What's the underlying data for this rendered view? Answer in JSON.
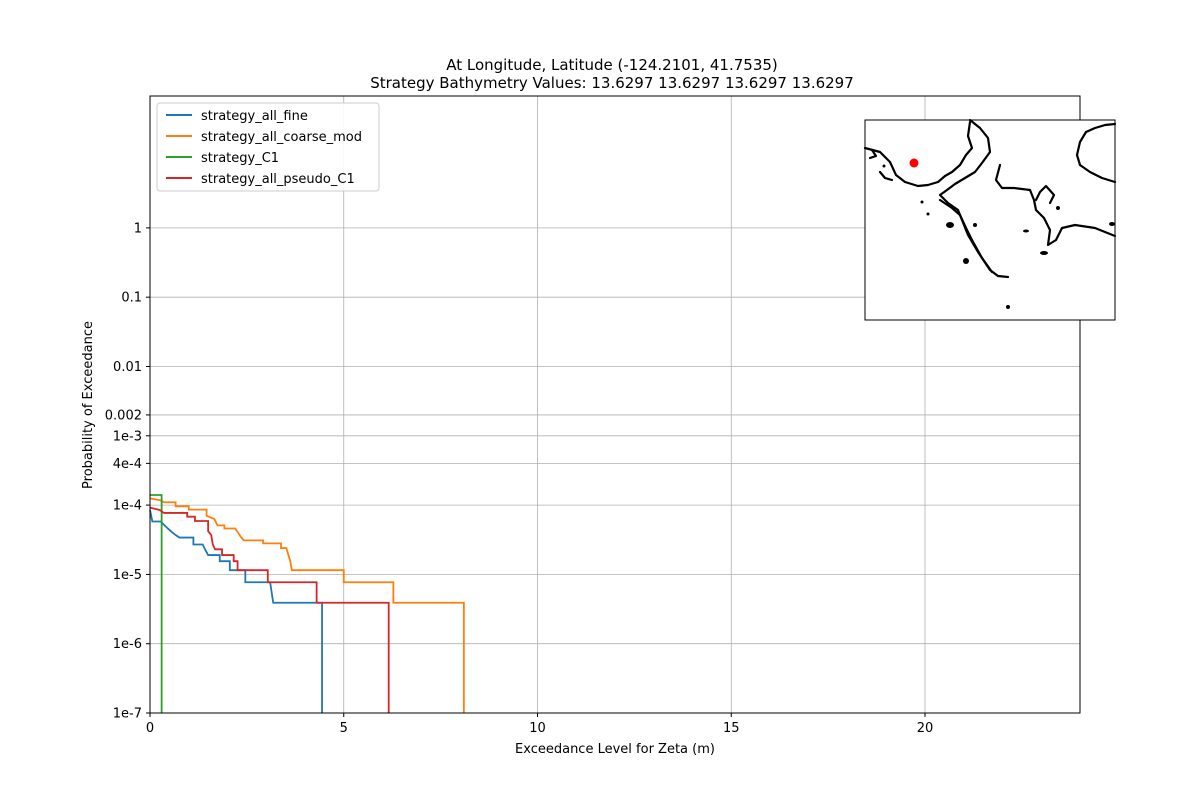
{
  "chart_data": {
    "type": "line",
    "step": true,
    "title": [
      "At Longitude, Latitude (-124.2101,  41.7535)",
      "Strategy Bathymetry Values:   13.6297   13.6297   13.6297   13.6297"
    ],
    "xlabel": "Exceedance Level for Zeta (m)",
    "ylabel": "Probability of Exceedance",
    "xlim": [
      0,
      24
    ],
    "ylim": [
      1e-07,
      80
    ],
    "yscale": "log",
    "grid": true,
    "legend": "top-left",
    "x_ticks": [
      {
        "v": 0,
        "label": "0"
      },
      {
        "v": 5,
        "label": "5"
      },
      {
        "v": 10,
        "label": "10"
      },
      {
        "v": 15,
        "label": "15"
      },
      {
        "v": 20,
        "label": "20"
      }
    ],
    "y_ticks": [
      {
        "v": 1e-07,
        "label": "1e-7"
      },
      {
        "v": 1e-06,
        "label": "1e-6"
      },
      {
        "v": 1e-05,
        "label": "1e-5"
      },
      {
        "v": 0.0001,
        "label": "1e-4"
      },
      {
        "v": 0.0004,
        "label": "4e-4"
      },
      {
        "v": 0.001,
        "label": "1e-3"
      },
      {
        "v": 0.002,
        "label": "0.002"
      },
      {
        "v": 0.01,
        "label": "0.01"
      },
      {
        "v": 0.1,
        "label": "0.1"
      },
      {
        "v": 1,
        "label": "1"
      }
    ],
    "series": [
      {
        "name": "strategy_all_fine",
        "color": "#1f77b4",
        "points": [
          [
            0,
            8.5e-05
          ],
          [
            0.06,
            5.8e-05
          ],
          [
            0.28,
            5.8e-05
          ],
          [
            0.36,
            5.2e-05
          ],
          [
            0.46,
            4.6e-05
          ],
          [
            0.56,
            4.1e-05
          ],
          [
            0.66,
            3.7e-05
          ],
          [
            0.76,
            3.4e-05
          ],
          [
            1.12,
            3.4e-05
          ],
          [
            1.12,
            2.7e-05
          ],
          [
            1.36,
            2.7e-05
          ],
          [
            1.42,
            2.3e-05
          ],
          [
            1.5,
            1.9e-05
          ],
          [
            1.8,
            1.9e-05
          ],
          [
            1.8,
            1.55e-05
          ],
          [
            2.06,
            1.55e-05
          ],
          [
            2.06,
            1.15e-05
          ],
          [
            2.46,
            1.15e-05
          ],
          [
            2.46,
            7.7e-06
          ],
          [
            3.1,
            7.7e-06
          ],
          [
            3.18,
            3.9e-06
          ],
          [
            4.44,
            3.9e-06
          ],
          [
            4.44,
            1e-07
          ]
        ]
      },
      {
        "name": "strategy_all_coarse_mod",
        "color": "#ff7f0e",
        "points": [
          [
            0,
            0.000125
          ],
          [
            0.25,
            0.000118
          ],
          [
            0.36,
            0.00011
          ],
          [
            0.66,
            0.00011
          ],
          [
            0.66,
            9.6e-05
          ],
          [
            1.0,
            9.6e-05
          ],
          [
            1.0,
            8.6e-05
          ],
          [
            1.46,
            8.6e-05
          ],
          [
            1.46,
            7e-05
          ],
          [
            1.66,
            6.3e-05
          ],
          [
            1.74,
            5.1e-05
          ],
          [
            1.92,
            5.1e-05
          ],
          [
            1.92,
            4.6e-05
          ],
          [
            2.2,
            4.6e-05
          ],
          [
            2.26,
            4.1e-05
          ],
          [
            2.34,
            3.5e-05
          ],
          [
            2.42,
            3.1e-05
          ],
          [
            2.92,
            3.1e-05
          ],
          [
            2.92,
            2.8e-05
          ],
          [
            3.38,
            2.8e-05
          ],
          [
            3.38,
            2.4e-05
          ],
          [
            3.52,
            2.4e-05
          ],
          [
            3.56,
            2e-05
          ],
          [
            3.62,
            1.55e-05
          ],
          [
            3.66,
            1.15e-05
          ],
          [
            5.0,
            1.15e-05
          ],
          [
            5.0,
            7.7e-06
          ],
          [
            6.28,
            7.7e-06
          ],
          [
            6.28,
            3.9e-06
          ],
          [
            8.1,
            3.9e-06
          ],
          [
            8.1,
            1e-07
          ]
        ]
      },
      {
        "name": "strategy_C1",
        "color": "#2ca02c",
        "points": [
          [
            0,
            0.00014
          ],
          [
            0.3,
            0.00014
          ],
          [
            0.3,
            1e-07
          ]
        ]
      },
      {
        "name": "strategy_all_pseudo_C1",
        "color": "#d62728",
        "points": [
          [
            0,
            9.2e-05
          ],
          [
            0.25,
            8.5e-05
          ],
          [
            0.36,
            7.7e-05
          ],
          [
            0.96,
            7.7e-05
          ],
          [
            0.96,
            6.8e-05
          ],
          [
            1.16,
            6.8e-05
          ],
          [
            1.16,
            5.9e-05
          ],
          [
            1.5,
            5.9e-05
          ],
          [
            1.5,
            4.2e-05
          ],
          [
            1.58,
            3.7e-05
          ],
          [
            1.62,
            2.7e-05
          ],
          [
            1.68,
            2.3e-05
          ],
          [
            1.86,
            2.3e-05
          ],
          [
            1.86,
            1.9e-05
          ],
          [
            2.16,
            1.9e-05
          ],
          [
            2.16,
            1.55e-05
          ],
          [
            2.26,
            1.55e-05
          ],
          [
            2.26,
            1.15e-05
          ],
          [
            3.04,
            1.15e-05
          ],
          [
            3.04,
            7.7e-06
          ],
          [
            4.3,
            7.7e-06
          ],
          [
            4.3,
            3.9e-06
          ],
          [
            6.16,
            3.9e-06
          ],
          [
            6.16,
            1e-07
          ]
        ]
      }
    ]
  },
  "inset_map": {
    "marker_color": "#ff0000"
  }
}
